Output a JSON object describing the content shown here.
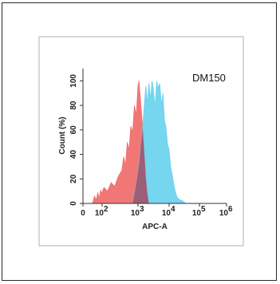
{
  "chart_data": {
    "type": "area",
    "sample_label": "DM150",
    "xlabel": "APC-A",
    "ylabel": "Count  (%)",
    "x_scale": "log",
    "xlim": [
      0,
      1000000
    ],
    "ylim": [
      0,
      110
    ],
    "x_ticks": [
      {
        "value": 0,
        "label": "0"
      },
      {
        "value": 100,
        "label": "10",
        "exp": "2"
      },
      {
        "value": 1000,
        "label": "10",
        "exp": "3"
      },
      {
        "value": 10000,
        "label": "10",
        "exp": "4"
      },
      {
        "value": 100000,
        "label": "10",
        "exp": "5"
      },
      {
        "value": 1000000,
        "label": "10",
        "exp": "6"
      }
    ],
    "y_ticks": [
      0,
      20,
      40,
      60,
      80,
      100
    ],
    "series": [
      {
        "color": "#f07070",
        "points": [
          [
            1,
            0
          ],
          [
            1.2,
            6
          ],
          [
            1.4,
            3
          ],
          [
            1.55,
            9
          ],
          [
            1.7,
            4
          ],
          [
            1.85,
            11
          ],
          [
            1.95,
            8
          ],
          [
            2.05,
            13
          ],
          [
            2.15,
            10
          ],
          [
            2.25,
            17
          ],
          [
            2.35,
            14
          ],
          [
            2.45,
            22
          ],
          [
            2.55,
            27
          ],
          [
            2.6,
            38
          ],
          [
            2.65,
            31
          ],
          [
            2.7,
            50
          ],
          [
            2.75,
            44
          ],
          [
            2.8,
            63
          ],
          [
            2.85,
            58
          ],
          [
            2.9,
            80
          ],
          [
            2.95,
            72
          ],
          [
            3.0,
            96
          ],
          [
            3.03,
            100
          ],
          [
            3.07,
            88
          ],
          [
            3.1,
            78
          ],
          [
            3.15,
            62
          ],
          [
            3.2,
            42
          ],
          [
            3.25,
            22
          ],
          [
            3.3,
            8
          ],
          [
            3.35,
            0
          ]
        ]
      },
      {
        "color": "#6fd3ee",
        "points": [
          [
            2.85,
            0
          ],
          [
            2.9,
            8
          ],
          [
            2.95,
            16
          ],
          [
            3.0,
            26
          ],
          [
            3.05,
            36
          ],
          [
            3.1,
            50
          ],
          [
            3.15,
            62
          ],
          [
            3.2,
            80
          ],
          [
            3.25,
            96
          ],
          [
            3.3,
            82
          ],
          [
            3.35,
            98
          ],
          [
            3.4,
            85
          ],
          [
            3.45,
            100
          ],
          [
            3.5,
            92
          ],
          [
            3.55,
            78
          ],
          [
            3.6,
            100
          ],
          [
            3.65,
            94
          ],
          [
            3.7,
            98
          ],
          [
            3.75,
            80
          ],
          [
            3.8,
            90
          ],
          [
            3.85,
            68
          ],
          [
            3.9,
            62
          ],
          [
            3.95,
            48
          ],
          [
            4.0,
            44
          ],
          [
            4.05,
            30
          ],
          [
            4.1,
            24
          ],
          [
            4.15,
            16
          ],
          [
            4.2,
            10
          ],
          [
            4.25,
            6
          ],
          [
            4.3,
            4
          ],
          [
            4.35,
            3
          ],
          [
            4.45,
            2
          ],
          [
            4.55,
            0
          ]
        ]
      }
    ],
    "overlap_color": "#a34b63"
  }
}
